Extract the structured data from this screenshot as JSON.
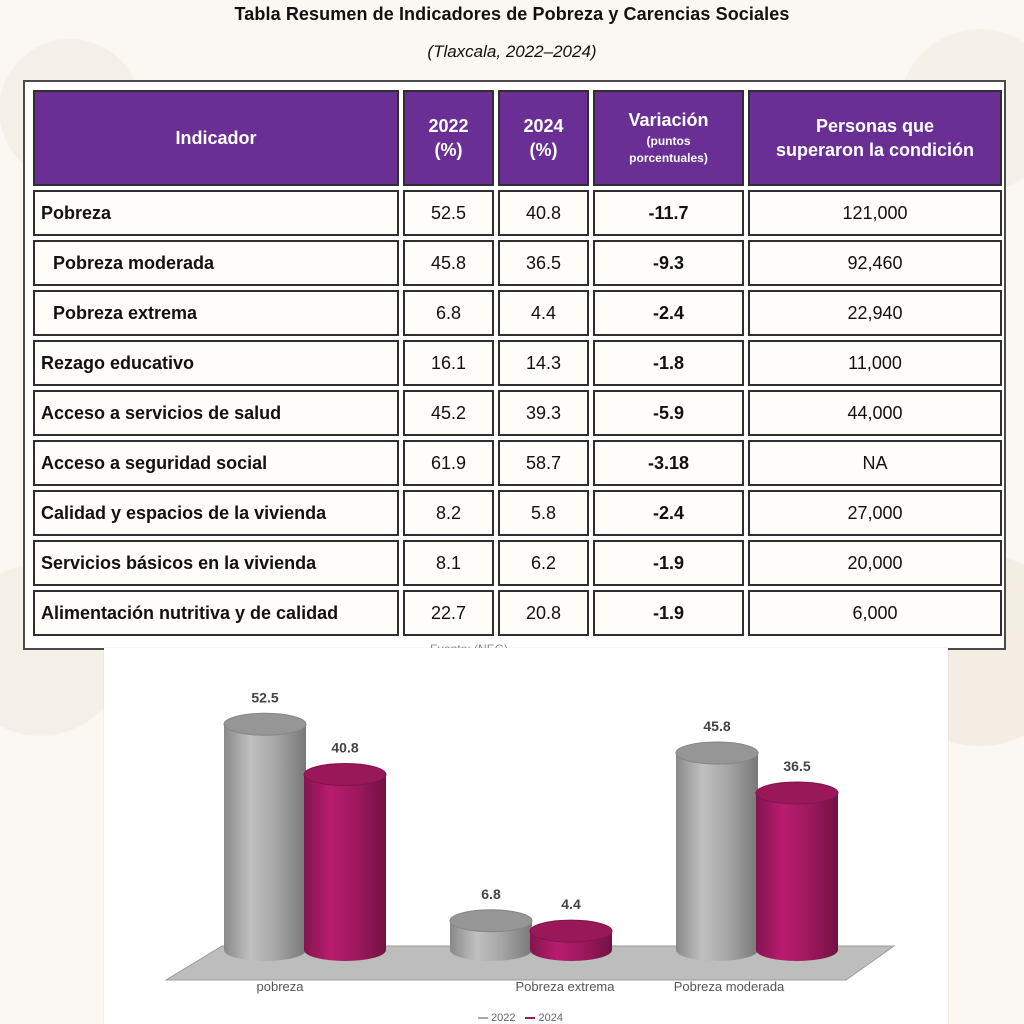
{
  "header": {
    "title": "Tabla Resumen de Indicadores de Pobreza y Carencias Sociales",
    "subtitle": "(Tlaxcala, 2022–2024)"
  },
  "table": {
    "columns": {
      "indicador": "Indicador",
      "y2022_year": "2022",
      "y2022_unit": "(%)",
      "y2024_year": "2024",
      "y2024_unit": "(%)",
      "variation_title": "Variación",
      "variation_note_1": "(puntos",
      "variation_note_2": "porcentuales)",
      "persons_line_1": "Personas que",
      "persons_line_2": "superaron la condición"
    },
    "rows": [
      {
        "indicator": "Pobreza",
        "v2022": "52.5",
        "v2024": "40.8",
        "variation": "-11.7",
        "persons": "121,000",
        "indent": false
      },
      {
        "indicator": "Pobreza moderada",
        "v2022": "45.8",
        "v2024": "36.5",
        "variation": "-9.3",
        "persons": "92,460",
        "indent": true
      },
      {
        "indicator": "Pobreza extrema",
        "v2022": "6.8",
        "v2024": "4.4",
        "variation": "-2.4",
        "persons": "22,940",
        "indent": true
      },
      {
        "indicator": "Rezago educativo",
        "v2022": "16.1",
        "v2024": "14.3",
        "variation": "-1.8",
        "persons": "11,000",
        "indent": false
      },
      {
        "indicator": "Acceso a servicios de salud",
        "v2022": "45.2",
        "v2024": "39.3",
        "variation": "-5.9",
        "persons": "44,000",
        "indent": false
      },
      {
        "indicator": "Acceso a seguridad social",
        "v2022": "61.9",
        "v2024": "58.7",
        "variation": "-3.18",
        "persons": "NA",
        "indent": false
      },
      {
        "indicator": "Calidad y espacios de la vivienda",
        "v2022": "8.2",
        "v2024": "5.8",
        "variation": "-2.4",
        "persons": "27,000",
        "indent": false
      },
      {
        "indicator": "Servicios básicos en la vivienda",
        "v2022": "8.1",
        "v2024": "6.2",
        "variation": "-1.9",
        "persons": "20,000",
        "indent": false
      },
      {
        "indicator": "Alimentación nutritiva y de calidad",
        "v2022": "22.7",
        "v2024": "20.8",
        "variation": "-1.9",
        "persons": "6,000",
        "indent": false
      }
    ]
  },
  "source_peek": "Fuente: (NEG)",
  "chart_data": {
    "type": "bar",
    "categories": [
      "pobreza",
      "Pobreza extrema",
      "Pobreza moderada"
    ],
    "series": [
      {
        "name": "2022",
        "values": [
          52.5,
          6.8,
          45.8
        ],
        "color": "#a7a7a7"
      },
      {
        "name": "2024",
        "values": [
          40.8,
          4.4,
          36.5
        ],
        "color": "#a0195f"
      }
    ],
    "title": "",
    "xlabel": "",
    "ylabel": "",
    "ylim": [
      0,
      60
    ],
    "grid": false,
    "legend": "bottom-center"
  }
}
